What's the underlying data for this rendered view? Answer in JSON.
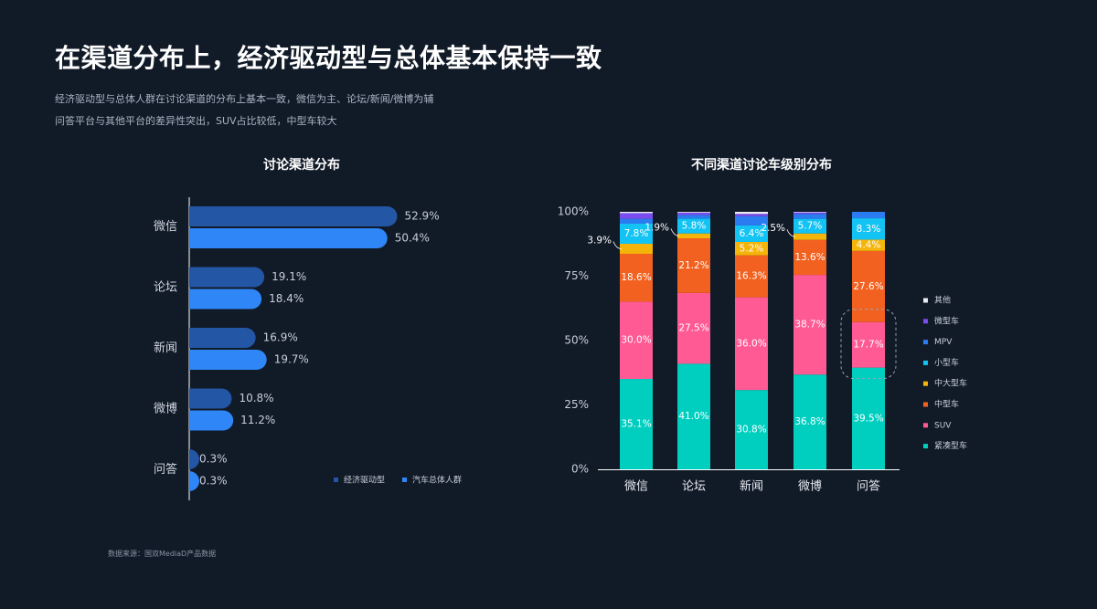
{
  "page": {
    "title": "在渠道分布上，经济驱动型与总体基本保持一致",
    "subtitle_lines": [
      "经济驱动型与总体人群在讨论渠道的分布上基本一致，微信为主、论坛/新闻/微博为辅",
      "问答平台与其他平台的差异性突出，SUV占比较低，中型车较大"
    ],
    "source": "数据来源：国双MediaD产品数据"
  },
  "chart_data": [
    {
      "type": "bar",
      "orientation": "horizontal",
      "title": "讨论渠道分布",
      "categories": [
        "微信",
        "论坛",
        "新闻",
        "微博",
        "问答"
      ],
      "series": [
        {
          "name": "经济驱动型",
          "values": [
            52.9,
            19.1,
            16.9,
            10.8,
            0.3
          ],
          "labels": [
            "52.9%",
            "19.1%",
            "16.9%",
            "10.8%",
            "0.3%"
          ],
          "color": "#2456a6"
        },
        {
          "name": "汽车总体人群",
          "values": [
            50.4,
            18.4,
            19.7,
            11.2,
            0.3
          ],
          "labels": [
            "50.4%",
            "18.4%",
            "19.7%",
            "11.2%",
            "0.3%"
          ],
          "color": "#2e86f7"
        }
      ],
      "xlim": [
        0,
        60
      ],
      "legend_position": "bottom-right"
    },
    {
      "type": "bar",
      "stacked": true,
      "title": "不同渠道讨论车级别分布",
      "categories": [
        "微信",
        "论坛",
        "新闻",
        "微博",
        "问答"
      ],
      "y_ticks": [
        "0%",
        "25%",
        "50%",
        "75%",
        "100%"
      ],
      "ylim": [
        0,
        100
      ],
      "series": [
        {
          "name": "紧凑型车",
          "color": "#00cfc0",
          "values": [
            35.1,
            41.0,
            30.8,
            36.8,
            39.5
          ],
          "labels": [
            "35.1%",
            "41.0%",
            "30.8%",
            "36.8%",
            "39.5%"
          ]
        },
        {
          "name": "SUV",
          "color": "#ff5a93",
          "values": [
            30.0,
            27.5,
            36.0,
            38.7,
            17.7
          ],
          "labels": [
            "30.0%",
            "27.5%",
            "36.0%",
            "38.7%",
            "17.7%"
          ]
        },
        {
          "name": "中型车",
          "color": "#f2611f",
          "values": [
            18.6,
            21.2,
            16.3,
            13.6,
            27.6
          ],
          "labels": [
            "18.6%",
            "21.2%",
            "16.3%",
            "13.6%",
            "27.6%"
          ]
        },
        {
          "name": "中大型车",
          "color": "#f5b40a",
          "values": [
            3.9,
            1.9,
            5.2,
            2.5,
            4.4
          ],
          "labels": [
            "3.9%",
            "1.9%",
            "5.2%",
            "2.5%",
            "4.4%"
          ]
        },
        {
          "name": "小型车",
          "color": "#12c3f4",
          "values": [
            7.8,
            5.8,
            6.4,
            5.7,
            8.3
          ],
          "labels": [
            "7.8%",
            "5.8%",
            "6.4%",
            "5.7%",
            "8.3%"
          ]
        },
        {
          "name": "MPV",
          "color": "#2a7cf0",
          "values": [
            1.9,
            1.4,
            3.6,
            1.9,
            2.5
          ],
          "labels": [
            "",
            "",
            "",
            "",
            ""
          ]
        },
        {
          "name": "微型车",
          "color": "#7b4cf0",
          "values": [
            2.2,
            0.9,
            0.9,
            0.6,
            0.0
          ],
          "labels": [
            "",
            "",
            "",
            "",
            ""
          ]
        },
        {
          "name": "其他",
          "color": "#e8ecf2",
          "values": [
            0.5,
            0.3,
            0.8,
            0.2,
            0.0
          ],
          "labels": [
            "",
            "",
            "",
            "",
            ""
          ]
        }
      ],
      "callout_series": "中大型车",
      "callout_categories": [
        "微信",
        "论坛",
        "微博"
      ],
      "highlight": {
        "category": "问答",
        "series": "SUV",
        "style": "dashed-rounded-box"
      },
      "legend_order": [
        "其他",
        "微型车",
        "MPV",
        "小型车",
        "中大型车",
        "中型车",
        "SUV",
        "紧凑型车"
      ],
      "legend_position": "right"
    }
  ]
}
